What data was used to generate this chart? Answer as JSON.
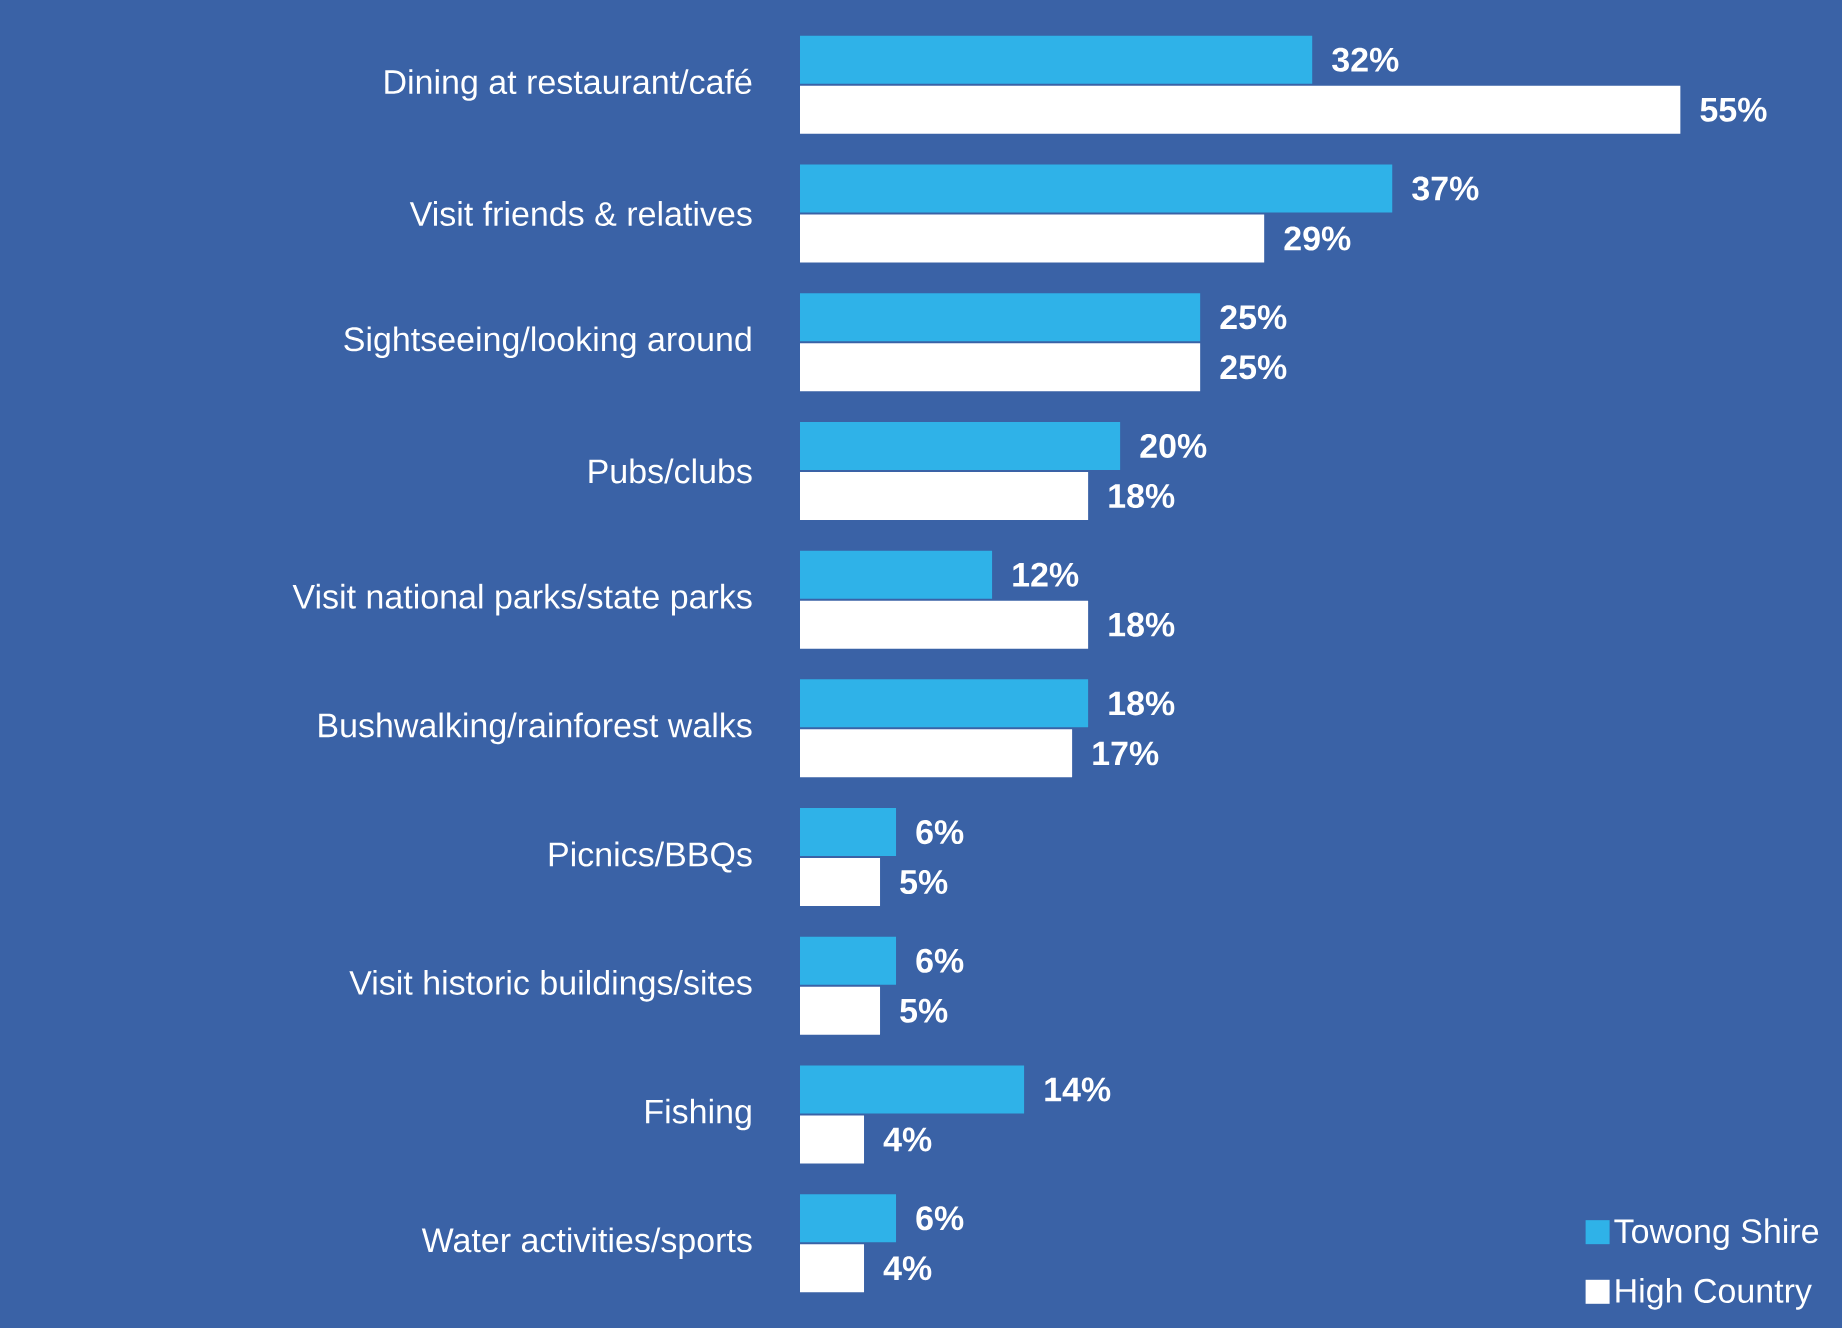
{
  "chart_data": {
    "type": "bar",
    "orientation": "horizontal",
    "categories": [
      "Dining at restaurant/café",
      "Visit friends & relatives",
      "Sightseeing/looking around",
      "Pubs/clubs",
      "Visit national parks/state parks",
      "Bushwalking/rainforest walks",
      "Picnics/BBQs",
      "Visit historic buildings/sites",
      "Fishing",
      "Water activities/sports"
    ],
    "series": [
      {
        "name": "Towong Shire",
        "color": "#2fb2e8",
        "values": [
          32,
          37,
          25,
          20,
          12,
          18,
          6,
          6,
          14,
          6
        ],
        "value_labels": [
          "32%",
          "37%",
          "25%",
          "20%",
          "12%",
          "18%",
          "6%",
          "6%",
          "14%",
          "6%"
        ]
      },
      {
        "name": "High Country",
        "color": "#ffffff",
        "values": [
          55,
          29,
          25,
          18,
          18,
          17,
          5,
          5,
          4,
          4
        ],
        "value_labels": [
          "55%",
          "29%",
          "25%",
          "18%",
          "18%",
          "17%",
          "5%",
          "5%",
          "4%",
          "4%"
        ]
      }
    ],
    "tick_labels": "y",
    "legend": "bottom right"
  }
}
